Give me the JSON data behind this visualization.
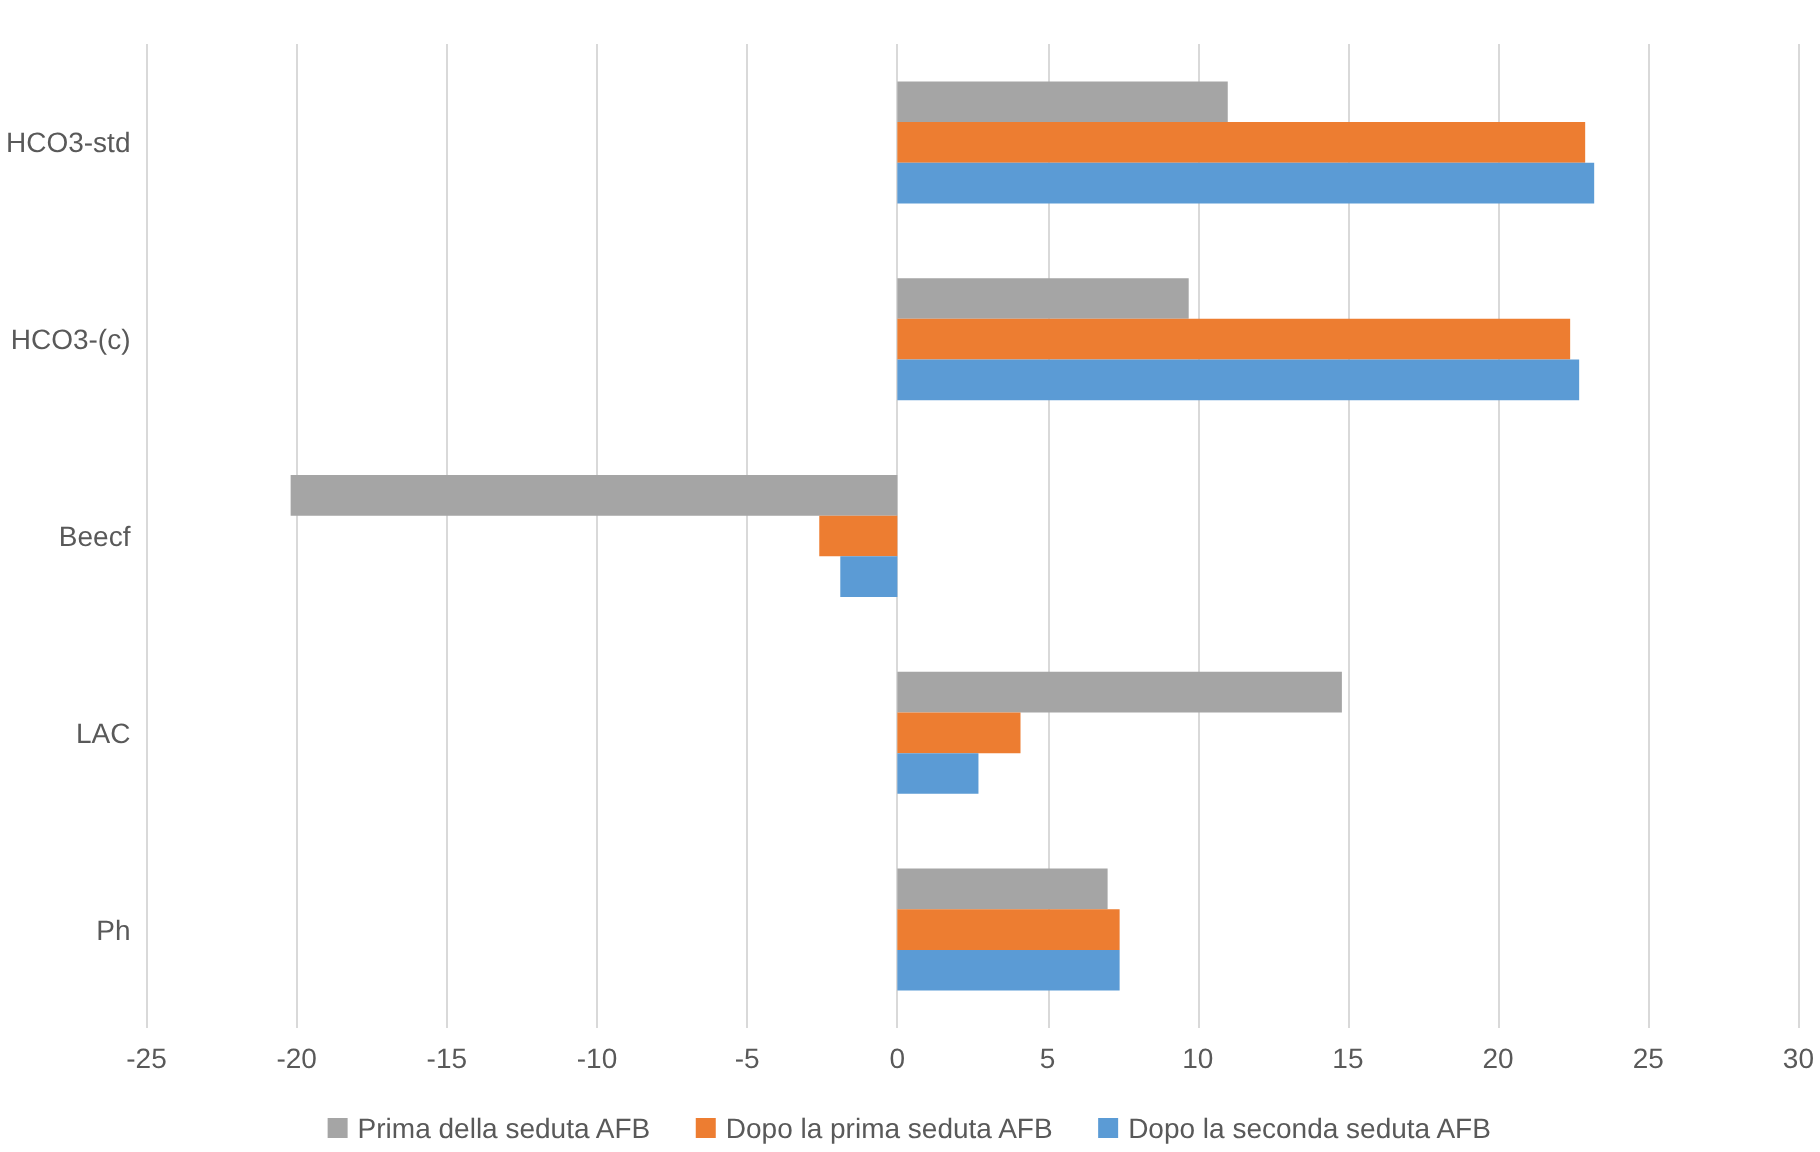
{
  "chart_data": {
    "type": "bar",
    "orientation": "horizontal",
    "categories": [
      "HCO3-std",
      "HCO3-(c)",
      "Beecf",
      "LAC",
      "Ph"
    ],
    "series": [
      {
        "name": "Prima della seduta AFB",
        "color": "#a5a5a5",
        "values": [
          11.0,
          9.7,
          -20.2,
          14.8,
          7.0
        ]
      },
      {
        "name": "Dopo la prima seduta AFB",
        "color": "#ed7d31",
        "values": [
          22.9,
          22.4,
          -2.6,
          4.1,
          7.4
        ]
      },
      {
        "name": "Dopo la seconda seduta AFB",
        "color": "#5b9bd5",
        "values": [
          23.2,
          22.7,
          -1.9,
          2.7,
          7.4
        ]
      }
    ],
    "xlim": [
      -25,
      30
    ],
    "xticks": [
      -25,
      -20,
      -15,
      -10,
      -5,
      0,
      5,
      10,
      15,
      20,
      25,
      30
    ],
    "grid": "x",
    "legend": "bottom"
  }
}
